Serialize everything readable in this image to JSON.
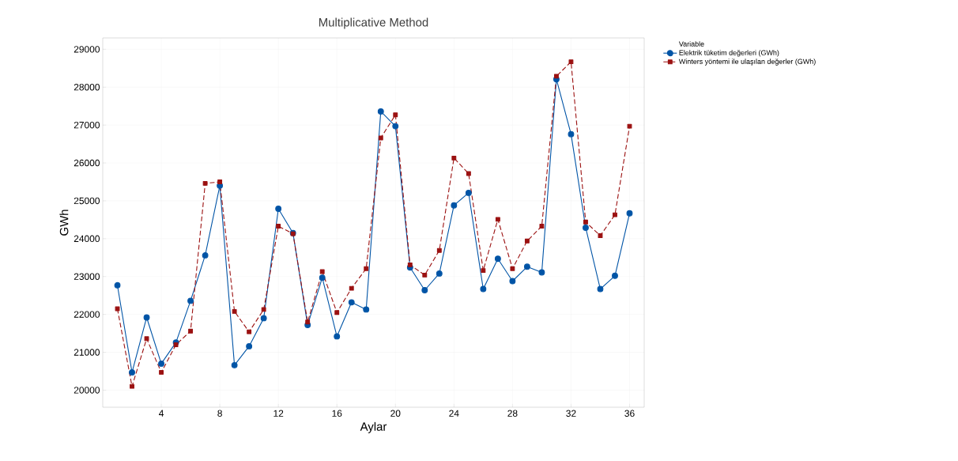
{
  "chart_data": {
    "type": "line",
    "title": "Multiplicative Method",
    "xlabel": "Aylar",
    "ylabel": "GWh",
    "legend_title": "Variable",
    "x": [
      1,
      2,
      3,
      4,
      5,
      6,
      7,
      8,
      9,
      10,
      11,
      12,
      13,
      14,
      15,
      16,
      17,
      18,
      19,
      20,
      21,
      22,
      23,
      24,
      25,
      26,
      27,
      28,
      29,
      30,
      31,
      32,
      33,
      34,
      35,
      36
    ],
    "series": [
      {
        "name": "Elektrik tüketim değerleri (GWh)",
        "color": "#0054a6",
        "marker": "circle",
        "line_style": "solid",
        "values": [
          22770,
          20470,
          21920,
          20700,
          21260,
          22360,
          23560,
          25400,
          20660,
          21160,
          21900,
          24790,
          24150,
          21720,
          22970,
          21420,
          22320,
          22130,
          27360,
          26970,
          23240,
          22640,
          23080,
          24880,
          25210,
          22670,
          23470,
          22880,
          23260,
          23110,
          28210,
          26760,
          24290,
          22670,
          23020,
          24670
        ]
      },
      {
        "name": "Winters yöntemi ile ulaşılan değerler (GWh)",
        "color": "#9b1111",
        "marker": "square",
        "line_style": "dashed",
        "values": [
          22150,
          20100,
          21360,
          20470,
          21200,
          21560,
          25460,
          25500,
          22080,
          21540,
          22130,
          24330,
          24130,
          21800,
          23130,
          22050,
          22690,
          23210,
          26660,
          27270,
          23310,
          23040,
          23690,
          26130,
          25720,
          23160,
          24510,
          23210,
          23940,
          24330,
          28290,
          28670,
          24440,
          24080,
          24630,
          26970
        ]
      }
    ],
    "xlim": [
      0,
      37
    ],
    "ylim": [
      19550,
      29300
    ],
    "xticks": [
      4,
      8,
      12,
      16,
      20,
      24,
      28,
      32,
      36
    ],
    "yticks": [
      20000,
      21000,
      22000,
      23000,
      24000,
      25000,
      26000,
      27000,
      28000,
      29000
    ],
    "grid": true,
    "legend": "top right"
  }
}
